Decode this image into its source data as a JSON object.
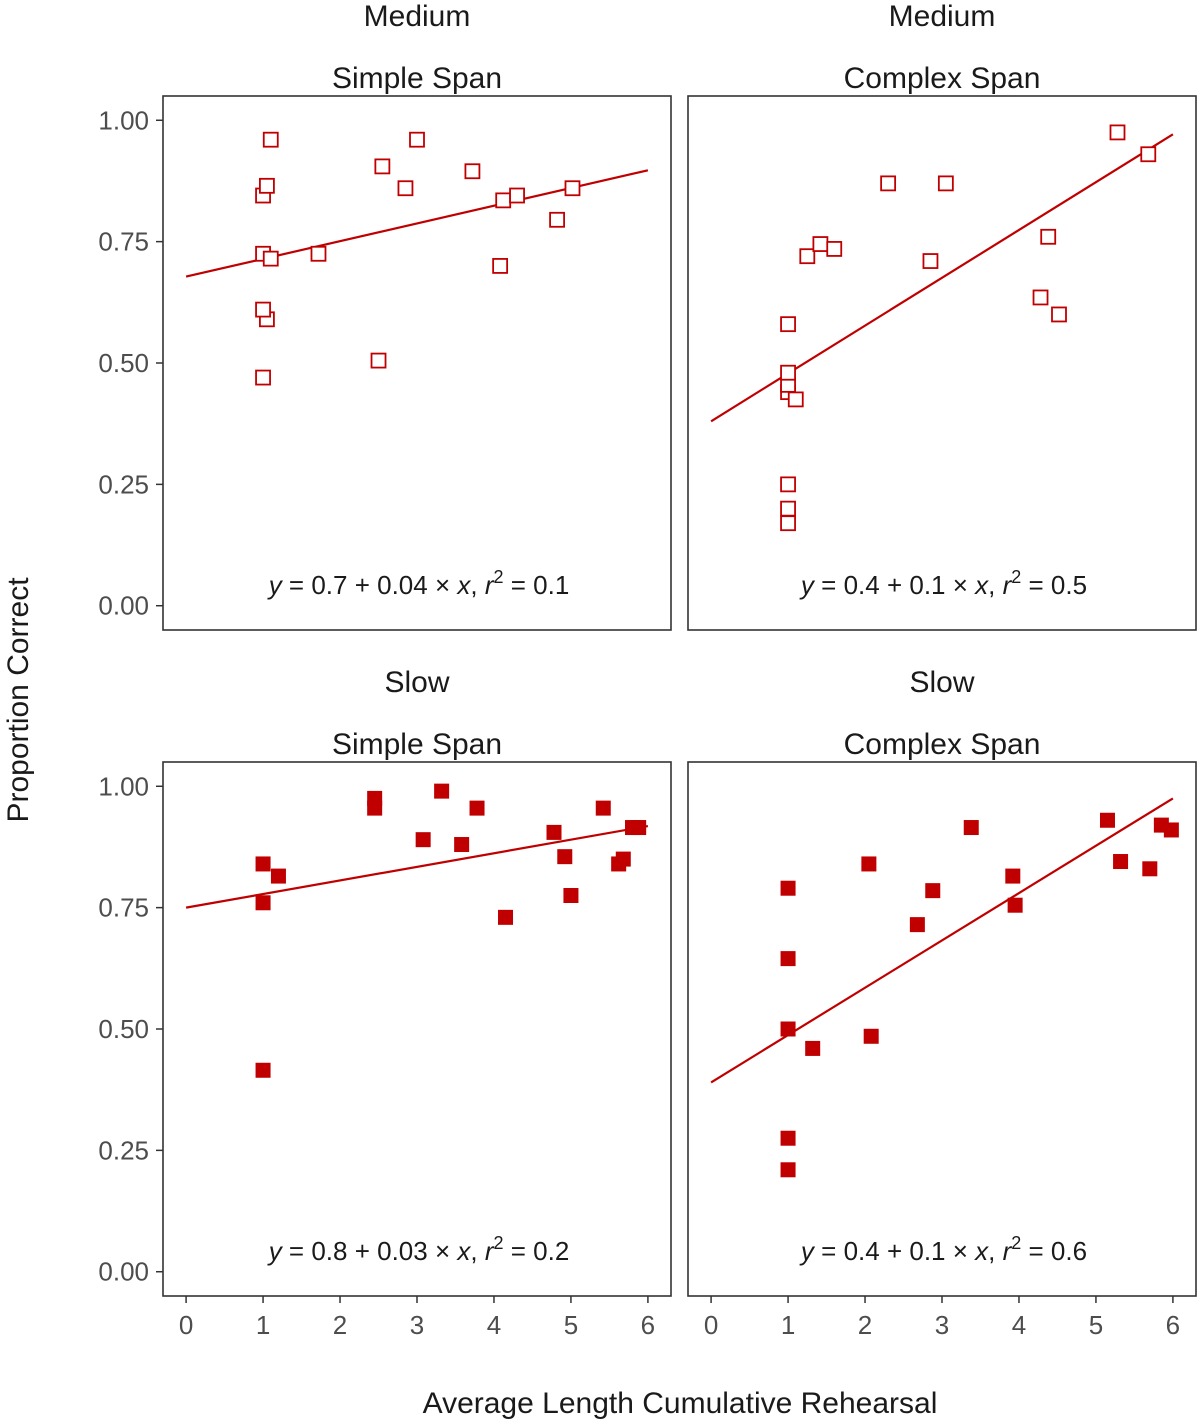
{
  "chart_data": {
    "type": "scatter",
    "xlabel": "Average Length Cumulative Rehearsal",
    "ylabel": "Proportion Correct",
    "xlim": [
      -0.3,
      6.3
    ],
    "ylim": [
      -0.05,
      1.05
    ],
    "x_ticks": [
      "0",
      "1",
      "2",
      "3",
      "4",
      "5",
      "6"
    ],
    "y_ticks": [
      "0.00",
      "0.25",
      "0.50",
      "0.75",
      "1.00"
    ],
    "marker_color": "#c00000",
    "line_color": "#c00000",
    "panels": [
      {
        "speed": "Medium",
        "span": "Simple Span",
        "marker": "open-square",
        "fit": {
          "intercept": 0.678,
          "slope": 0.0365
        },
        "eq": {
          "a": "0.7",
          "b": "0.04",
          "r2": "0.1"
        },
        "points": [
          [
            1.0,
            0.47
          ],
          [
            1.05,
            0.59
          ],
          [
            1.0,
            0.61
          ],
          [
            1.0,
            0.725
          ],
          [
            1.1,
            0.715
          ],
          [
            1.0,
            0.845
          ],
          [
            1.05,
            0.865
          ],
          [
            1.1,
            0.96
          ],
          [
            1.72,
            0.725
          ],
          [
            2.5,
            0.505
          ],
          [
            2.55,
            0.905
          ],
          [
            2.85,
            0.86
          ],
          [
            3.0,
            0.96
          ],
          [
            3.72,
            0.895
          ],
          [
            4.08,
            0.7
          ],
          [
            4.12,
            0.835
          ],
          [
            4.3,
            0.845
          ],
          [
            4.82,
            0.795
          ],
          [
            5.02,
            0.86
          ]
        ]
      },
      {
        "speed": "Medium",
        "span": "Complex Span",
        "marker": "open-square",
        "fit": {
          "intercept": 0.38,
          "slope": 0.0985
        },
        "eq": {
          "a": "0.4",
          "b": "0.1",
          "r2": "0.5"
        },
        "points": [
          [
            1.0,
            0.17
          ],
          [
            1.0,
            0.2
          ],
          [
            1.0,
            0.25
          ],
          [
            1.0,
            0.44
          ],
          [
            1.0,
            0.455
          ],
          [
            1.0,
            0.48
          ],
          [
            1.1,
            0.425
          ],
          [
            1.0,
            0.58
          ],
          [
            1.25,
            0.72
          ],
          [
            1.42,
            0.745
          ],
          [
            1.6,
            0.735
          ],
          [
            2.3,
            0.87
          ],
          [
            2.85,
            0.71
          ],
          [
            3.05,
            0.87
          ],
          [
            4.28,
            0.635
          ],
          [
            4.38,
            0.76
          ],
          [
            4.52,
            0.6
          ],
          [
            5.28,
            0.975
          ],
          [
            5.68,
            0.93
          ]
        ]
      },
      {
        "speed": "Slow",
        "span": "Simple Span",
        "marker": "filled-square",
        "fit": {
          "intercept": 0.75,
          "slope": 0.028
        },
        "eq": {
          "a": "0.8",
          "b": "0.03",
          "r2": "0.2"
        },
        "points": [
          [
            1.0,
            0.415
          ],
          [
            1.0,
            0.76
          ],
          [
            1.0,
            0.84
          ],
          [
            1.2,
            0.815
          ],
          [
            2.45,
            0.955
          ],
          [
            2.45,
            0.975
          ],
          [
            3.08,
            0.89
          ],
          [
            3.32,
            0.99
          ],
          [
            3.58,
            0.88
          ],
          [
            3.78,
            0.955
          ],
          [
            4.15,
            0.73
          ],
          [
            4.78,
            0.905
          ],
          [
            4.92,
            0.855
          ],
          [
            5.0,
            0.775
          ],
          [
            5.42,
            0.955
          ],
          [
            5.62,
            0.84
          ],
          [
            5.68,
            0.85
          ],
          [
            5.8,
            0.915
          ],
          [
            5.88,
            0.915
          ]
        ]
      },
      {
        "speed": "Slow",
        "span": "Complex Span",
        "marker": "filled-square",
        "fit": {
          "intercept": 0.39,
          "slope": 0.0975
        },
        "eq": {
          "a": "0.4",
          "b": "0.1",
          "r2": "0.6"
        },
        "points": [
          [
            1.0,
            0.21
          ],
          [
            1.0,
            0.275
          ],
          [
            1.0,
            0.5
          ],
          [
            1.0,
            0.645
          ],
          [
            1.0,
            0.79
          ],
          [
            1.32,
            0.46
          ],
          [
            2.05,
            0.84
          ],
          [
            2.08,
            0.485
          ],
          [
            2.68,
            0.715
          ],
          [
            2.88,
            0.785
          ],
          [
            3.38,
            0.915
          ],
          [
            3.92,
            0.815
          ],
          [
            3.95,
            0.755
          ],
          [
            5.15,
            0.93
          ],
          [
            5.32,
            0.845
          ],
          [
            5.7,
            0.83
          ],
          [
            5.85,
            0.92
          ],
          [
            5.98,
            0.91
          ]
        ]
      }
    ]
  }
}
